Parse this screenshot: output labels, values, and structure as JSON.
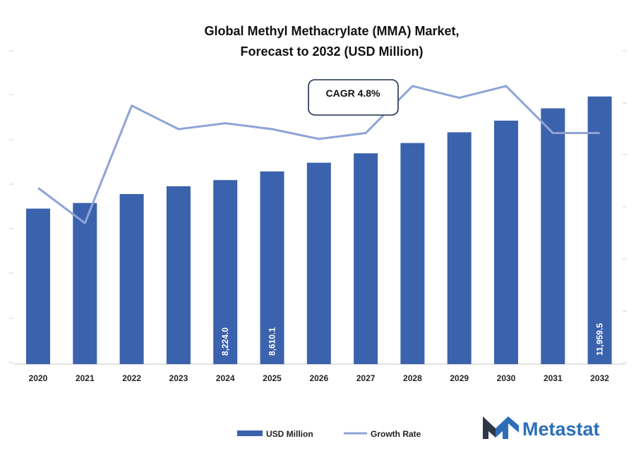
{
  "chart_data": {
    "type": "bar",
    "title_lines": [
      "Global Methyl Methacrylate (MMA) Market,",
      "Forecast to 2032 (USD Million)"
    ],
    "categories": [
      "2020",
      "2021",
      "2022",
      "2023",
      "2024",
      "2025",
      "2026",
      "2027",
      "2028",
      "2029",
      "2030",
      "2031",
      "2032"
    ],
    "series": [
      {
        "name": "USD Million",
        "type": "bar",
        "values": [
          6950,
          7200,
          7600,
          7950,
          8224.0,
          8610.1,
          9000,
          9420,
          9880,
          10360,
          10880,
          11430,
          11959.5
        ]
      },
      {
        "name": "Growth Rate",
        "type": "line",
        "values": [
          4.5,
          3.6,
          6.6,
          6.0,
          6.15,
          6.0,
          5.75,
          5.9,
          7.1,
          6.8,
          7.1,
          5.9,
          5.9
        ]
      }
    ],
    "data_labels": [
      {
        "index": 4,
        "text": "8,224.0"
      },
      {
        "index": 5,
        "text": "8,610.1"
      },
      {
        "index": 12,
        "text": "11,959.5"
      }
    ],
    "annotation": "CAGR 4.8%",
    "ylim": [
      0,
      14000
    ],
    "y2lim": [
      0,
      8
    ],
    "legend_position": "bottom",
    "colors": {
      "bar": "#3b62ad",
      "line": "#8fa4d6",
      "brand": "#2c6fb7",
      "brand_dark": "#2d3748"
    }
  },
  "brand": {
    "name": "Metastat",
    "logo_icon": "metastat-m-logo"
  }
}
